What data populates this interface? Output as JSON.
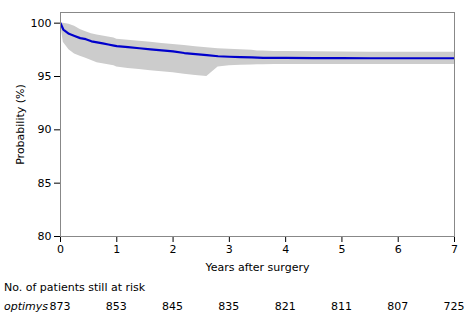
{
  "chart_data": {
    "type": "line",
    "xlabel": "Years after surgery",
    "ylabel": "Probability (%)",
    "xlim": [
      0,
      7
    ],
    "ylim": [
      80,
      101
    ],
    "yticks": [
      80,
      85,
      90,
      95,
      100
    ],
    "xticks": [
      0,
      1,
      2,
      3,
      4,
      5,
      6,
      7
    ],
    "grid": false,
    "color": "#0000cc",
    "ci_color": "#cccccc",
    "x": [
      0,
      0.05,
      0.15,
      0.25,
      0.35,
      0.45,
      0.55,
      0.65,
      0.75,
      0.85,
      0.95,
      1.0,
      1.2,
      1.4,
      1.6,
      1.8,
      2.0,
      2.2,
      2.4,
      2.6,
      2.8,
      3.0,
      3.2,
      3.4,
      3.5,
      3.6,
      3.8,
      4.0,
      4.5,
      5.0,
      5.5,
      6.0,
      6.5,
      7.0
    ],
    "values": [
      100,
      99.4,
      99.0,
      98.8,
      98.6,
      98.5,
      98.3,
      98.2,
      98.1,
      98.0,
      97.9,
      97.85,
      97.75,
      97.65,
      97.55,
      97.45,
      97.35,
      97.2,
      97.1,
      97.0,
      96.9,
      96.85,
      96.82,
      96.8,
      96.77,
      96.75,
      96.75,
      96.75,
      96.73,
      96.72,
      96.71,
      96.71,
      96.71,
      96.71
    ],
    "ci_upper": [
      100,
      100,
      99.9,
      99.7,
      99.4,
      99.2,
      99.0,
      98.9,
      98.8,
      98.7,
      98.6,
      98.5,
      98.4,
      98.3,
      98.2,
      98.1,
      98.0,
      97.9,
      97.8,
      97.7,
      97.6,
      97.55,
      97.5,
      97.45,
      97.4,
      97.38,
      97.35,
      97.35,
      97.32,
      97.3,
      97.28,
      97.27,
      97.27,
      97.27
    ],
    "ci_lower": [
      100,
      98.2,
      97.5,
      97.1,
      96.9,
      96.7,
      96.5,
      96.3,
      96.2,
      96.1,
      96.0,
      95.9,
      95.75,
      95.65,
      95.55,
      95.45,
      95.35,
      95.2,
      95.1,
      95.0,
      95.9,
      96.0,
      96.05,
      96.08,
      96.1,
      96.1,
      96.12,
      96.13,
      96.13,
      96.13,
      96.13,
      96.13,
      96.13,
      96.13
    ],
    "risk_label": "No. of patients still at risk",
    "risk_group": "optimys",
    "risk_times": [
      0,
      1,
      2,
      3,
      4,
      5,
      6,
      7
    ],
    "risk_counts": [
      873,
      853,
      845,
      835,
      821,
      811,
      807,
      725
    ]
  }
}
